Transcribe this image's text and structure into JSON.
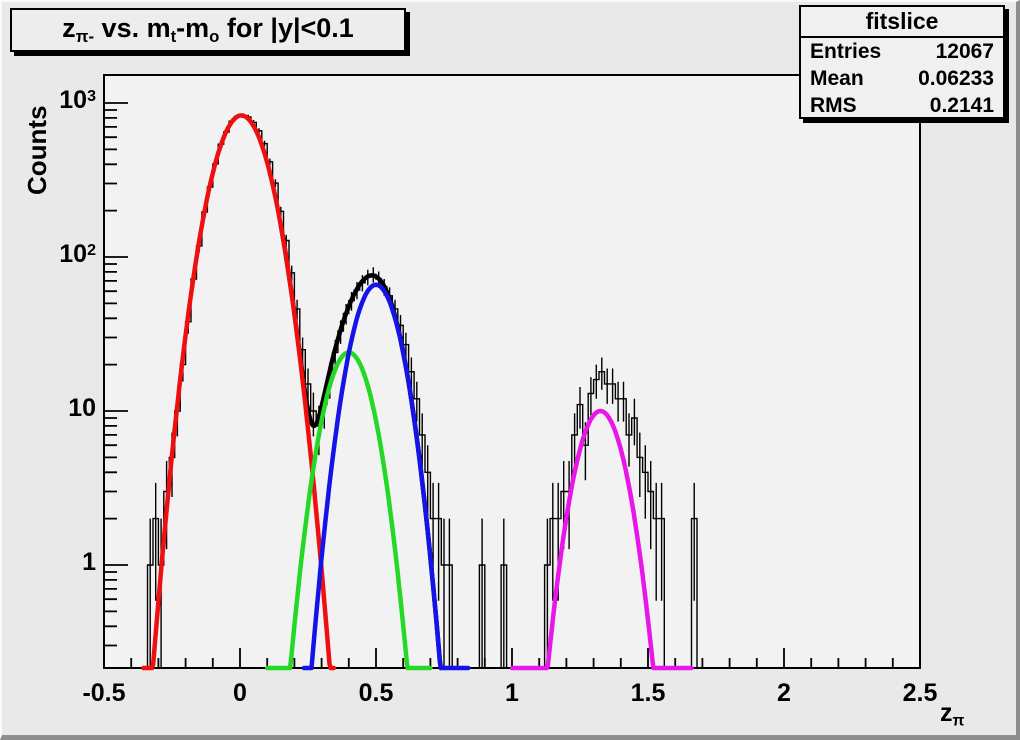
{
  "title": {
    "plain": "z_pi- vs. m_t-m_o for |y|<0.1",
    "segments": [
      {
        "text": "z",
        "sub": false
      },
      {
        "text": "π-",
        "sub": true
      },
      {
        "text": " vs. m",
        "sub": false
      },
      {
        "text": "t",
        "sub": true
      },
      {
        "text": "-m",
        "sub": false
      },
      {
        "text": "o",
        "sub": true
      },
      {
        "text": " for |y|<0.1",
        "sub": false
      }
    ]
  },
  "stats": {
    "title": "fitslice",
    "rows": [
      {
        "label": "Entries",
        "value": "12067"
      },
      {
        "label": "Mean",
        "value": "0.06233"
      },
      {
        "label": "RMS",
        "value": "0.2141"
      }
    ]
  },
  "axes": {
    "x": {
      "min": -0.5,
      "max": 2.5,
      "minor_step": 0.1,
      "ticks": [
        {
          "v": -0.5,
          "label": "-0.5"
        },
        {
          "v": 0,
          "label": "0"
        },
        {
          "v": 0.5,
          "label": "0.5"
        },
        {
          "v": 1,
          "label": "1"
        },
        {
          "v": 1.5,
          "label": "1.5"
        },
        {
          "v": 2,
          "label": "2"
        },
        {
          "v": 2.5,
          "label": "2.5"
        }
      ],
      "title_segments": [
        {
          "text": "z",
          "sub": false
        },
        {
          "text": "π",
          "sub": true
        }
      ]
    },
    "y": {
      "scale": "log",
      "label": "Counts",
      "ticks": [
        {
          "v": 1,
          "base": "1",
          "exp": null
        },
        {
          "v": 10,
          "base": "10",
          "exp": null
        },
        {
          "v": 100,
          "base": "10",
          "exp": "2"
        },
        {
          "v": 1000,
          "base": "10",
          "exp": "3"
        }
      ]
    }
  },
  "chart_data": {
    "type": "bar",
    "subtype": "histogram-log-with-gaussian-fits",
    "bin_width": 0.02,
    "xlabel": "z_pi",
    "ylabel": "Counts",
    "xlim": [
      -0.5,
      2.5
    ],
    "ylim_log": [
      0.214,
      1520
    ],
    "bins": [
      [
        -0.33,
        1
      ],
      [
        -0.31,
        2
      ],
      [
        -0.29,
        1
      ],
      [
        -0.27,
        3
      ],
      [
        -0.25,
        5
      ],
      [
        -0.23,
        10
      ],
      [
        -0.21,
        20
      ],
      [
        -0.19,
        38
      ],
      [
        -0.17,
        72
      ],
      [
        -0.15,
        118
      ],
      [
        -0.13,
        196
      ],
      [
        -0.11,
        285
      ],
      [
        -0.09,
        402
      ],
      [
        -0.07,
        540
      ],
      [
        -0.05,
        648
      ],
      [
        -0.03,
        762
      ],
      [
        -0.01,
        818
      ],
      [
        0.01,
        828
      ],
      [
        0.03,
        812
      ],
      [
        0.05,
        748
      ],
      [
        0.07,
        660
      ],
      [
        0.09,
        545
      ],
      [
        0.11,
        415
      ],
      [
        0.13,
        302
      ],
      [
        0.15,
        198
      ],
      [
        0.17,
        128
      ],
      [
        0.19,
        79
      ],
      [
        0.21,
        46
      ],
      [
        0.23,
        25
      ],
      [
        0.25,
        15
      ],
      [
        0.27,
        10
      ],
      [
        0.29,
        8
      ],
      [
        0.31,
        11
      ],
      [
        0.33,
        16
      ],
      [
        0.35,
        24
      ],
      [
        0.37,
        33
      ],
      [
        0.39,
        43
      ],
      [
        0.41,
        52
      ],
      [
        0.43,
        61
      ],
      [
        0.45,
        68
      ],
      [
        0.47,
        74
      ],
      [
        0.49,
        77
      ],
      [
        0.51,
        72
      ],
      [
        0.53,
        64
      ],
      [
        0.55,
        56
      ],
      [
        0.57,
        46
      ],
      [
        0.59,
        36
      ],
      [
        0.61,
        27
      ],
      [
        0.63,
        18
      ],
      [
        0.65,
        12
      ],
      [
        0.67,
        7
      ],
      [
        0.69,
        4
      ],
      [
        0.71,
        2
      ],
      [
        0.73,
        2
      ],
      [
        0.75,
        1
      ],
      [
        0.77,
        1
      ],
      [
        0.89,
        1
      ],
      [
        0.97,
        1
      ],
      [
        1.13,
        1
      ],
      [
        1.15,
        2
      ],
      [
        1.17,
        2
      ],
      [
        1.19,
        3
      ],
      [
        1.21,
        3
      ],
      [
        1.23,
        7
      ],
      [
        1.25,
        11
      ],
      [
        1.27,
        6
      ],
      [
        1.29,
        13
      ],
      [
        1.31,
        16
      ],
      [
        1.33,
        18
      ],
      [
        1.35,
        15
      ],
      [
        1.37,
        15
      ],
      [
        1.39,
        12
      ],
      [
        1.41,
        12
      ],
      [
        1.43,
        7
      ],
      [
        1.45,
        9
      ],
      [
        1.47,
        5
      ],
      [
        1.49,
        4
      ],
      [
        1.51,
        3
      ],
      [
        1.53,
        2
      ],
      [
        1.55,
        2
      ],
      [
        1.67,
        2
      ]
    ],
    "fits": [
      {
        "name": "total-fit",
        "color": "#000000",
        "sum_of": [
          "gauss-1",
          "gauss-2",
          "gauss-3"
        ],
        "range": [
          0.15,
          0.74
        ]
      },
      {
        "name": "gauss-1",
        "color": "#ee1010",
        "amplitude": 830,
        "mean": 0.005,
        "sigma": 0.08,
        "range": [
          -0.355,
          0.345
        ]
      },
      {
        "name": "gauss-2",
        "color": "#25d825",
        "amplitude": 24,
        "mean": 0.4,
        "sigma": 0.07,
        "range": [
          0.1,
          0.7
        ]
      },
      {
        "name": "gauss-3",
        "color": "#1414e8",
        "amplitude": 66,
        "mean": 0.5,
        "sigma": 0.07,
        "range": [
          0.235,
          0.84
        ]
      },
      {
        "name": "gauss-4",
        "color": "#e816e8",
        "amplitude": 10,
        "mean": 1.325,
        "sigma": 0.07,
        "range": [
          1.0,
          1.66
        ]
      }
    ],
    "hist_color": "#000000",
    "frame_fill": "#f2f2f2"
  }
}
